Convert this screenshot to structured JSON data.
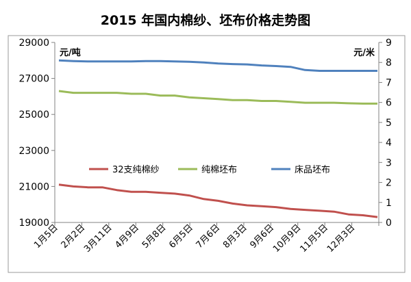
{
  "chart_data": {
    "type": "line",
    "title": "2015 年国内棉纱、坯布价格走势图",
    "left_axis_unit": "元/吨",
    "right_axis_unit": "元/米",
    "ylim_left": [
      19000,
      29000
    ],
    "ylim_right": [
      0,
      9
    ],
    "yticks_left": [
      19000,
      21000,
      23000,
      25000,
      27000,
      29000
    ],
    "yticks_right": [
      0,
      1,
      2,
      3,
      4,
      5,
      6,
      7,
      8,
      9
    ],
    "x_tick_labels": [
      "1月5日",
      "2月2日",
      "3月11日",
      "4月9日",
      "5月8日",
      "6月5日",
      "7月6日",
      "8月3日",
      "9月6日",
      "10月9日",
      "11月5日",
      "12月3日"
    ],
    "series": [
      {
        "name": "32支纯棉纱",
        "axis": "left",
        "color": "#c0504d",
        "values": [
          21100,
          21000,
          20950,
          20950,
          20800,
          20700,
          20700,
          20650,
          20600,
          20500,
          20300,
          20200,
          20050,
          19950,
          19900,
          19850,
          19750,
          19700,
          19650,
          19600,
          19450,
          19400,
          19300
        ]
      },
      {
        "name": "纯棉坯布",
        "axis": "left",
        "color": "#9bbb59",
        "values": [
          26300,
          26200,
          26200,
          26200,
          26200,
          26150,
          26150,
          26050,
          26050,
          25950,
          25900,
          25850,
          25800,
          25800,
          25750,
          25750,
          25700,
          25650,
          25650,
          25650,
          25620,
          25600,
          25600
        ]
      },
      {
        "name": "床品坯布",
        "axis": "right",
        "color": "#4f81bd",
        "values": [
          8.1,
          8.07,
          8.05,
          8.05,
          8.05,
          8.05,
          8.07,
          8.07,
          8.05,
          8.03,
          8.0,
          7.95,
          7.92,
          7.9,
          7.85,
          7.82,
          7.78,
          7.62,
          7.58,
          7.58,
          7.58,
          7.58,
          7.58
        ]
      }
    ]
  }
}
